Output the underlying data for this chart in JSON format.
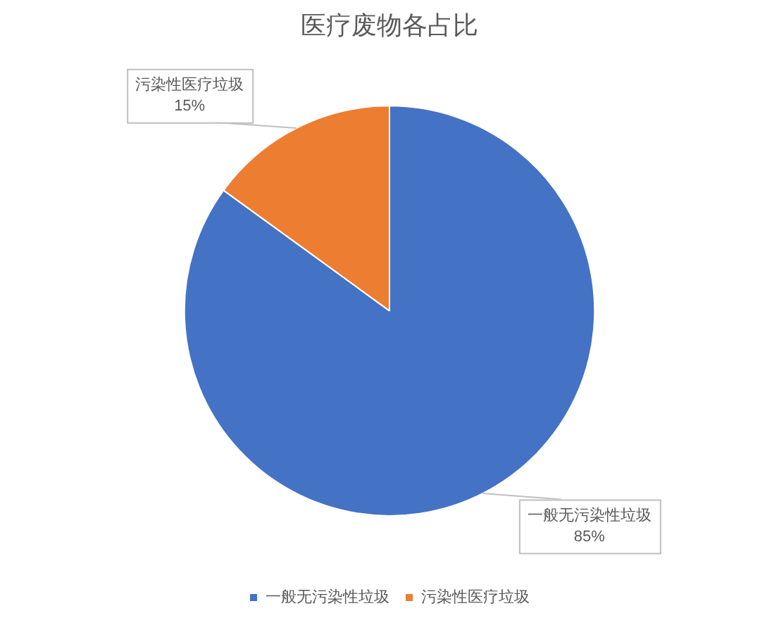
{
  "chart_data": {
    "type": "pie",
    "title": "医疗废物各占比",
    "categories": [
      "一般无污染性垃圾",
      "污染性医疗垃圾"
    ],
    "values": [
      85,
      15
    ],
    "colors": [
      "#4472c4",
      "#ed7d31"
    ],
    "value_labels": [
      "85%",
      "15%"
    ],
    "legend": "bottom"
  }
}
